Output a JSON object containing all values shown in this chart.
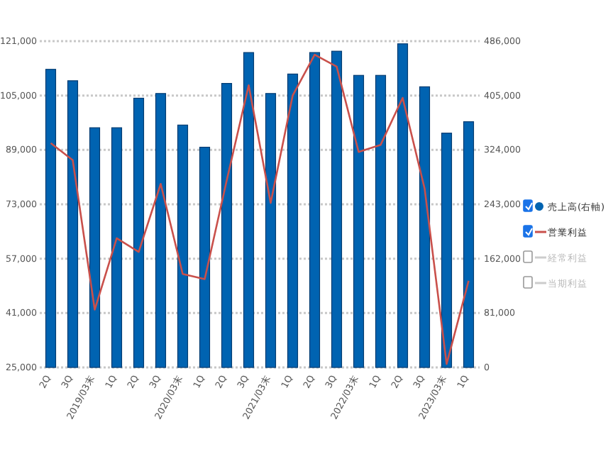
{
  "chart_data": {
    "type": "bar",
    "categories": [
      "2Q",
      "3Q",
      "2019/03末",
      "1Q",
      "2Q",
      "3Q",
      "2020/03末",
      "1Q",
      "2Q",
      "3Q",
      "2021/03末",
      "1Q",
      "2Q",
      "3Q",
      "2022/03末",
      "1Q",
      "2Q",
      "3Q",
      "2023/03末",
      "1Q"
    ],
    "series": [
      {
        "name": "売上高(右軸)",
        "color": "#0063b1",
        "axis": "y2",
        "values": [
          444000,
          427000,
          357000,
          357000,
          401000,
          408000,
          361000,
          328000,
          423000,
          469000,
          408000,
          437000,
          469000,
          471000,
          435000,
          435000,
          482000,
          418000,
          349000,
          366000
        ]
      },
      {
        "name": "営業利益",
        "color": "#c9504b",
        "type": "line",
        "values": [
          91000,
          86000,
          42000,
          63000,
          59000,
          79000,
          52500,
          51000,
          80000,
          108000,
          73400,
          105000,
          117000,
          113500,
          88400,
          90500,
          104300,
          77600,
          26000,
          50500
        ]
      },
      {
        "name": "経常利益",
        "color": "#cccccc",
        "type": "line",
        "values": [
          null,
          null,
          null,
          null,
          null,
          null,
          null,
          null,
          null,
          null,
          null,
          null,
          null,
          null,
          null,
          null,
          null,
          null,
          null,
          null
        ]
      },
      {
        "name": "当期利益",
        "color": "#cccccc",
        "type": "line",
        "values": [
          null,
          null,
          null,
          null,
          null,
          null,
          null,
          null,
          null,
          null,
          null,
          null,
          null,
          null,
          null,
          null,
          null,
          null,
          null,
          null
        ]
      }
    ],
    "ylim": [
      25000,
      121000
    ],
    "yticks": [
      {
        "value": 25000,
        "label": "25,000"
      },
      {
        "value": 41000,
        "label": "41,000"
      },
      {
        "value": 57000,
        "label": "57,000"
      },
      {
        "value": 73000,
        "label": "73,000"
      },
      {
        "value": 89000,
        "label": "89,000"
      },
      {
        "value": 105000,
        "label": "105,000"
      },
      {
        "value": 121000,
        "label": "121,000"
      }
    ],
    "y2lim": [
      0,
      486000
    ],
    "y2ticks": [
      0,
      {
        "value": 81000,
        "label": "81,000"
      },
      {
        "value": 162000,
        "label": "162,000"
      },
      {
        "value": 243000,
        "label": "243,000"
      },
      {
        "value": 324000,
        "label": "324,000"
      },
      {
        "value": 405000,
        "label": "405,000"
      },
      {
        "value": 486000,
        "label": "486,000"
      }
    ],
    "grid": "y",
    "legend": "right",
    "marker": "none",
    "line_style": "solid"
  }
}
